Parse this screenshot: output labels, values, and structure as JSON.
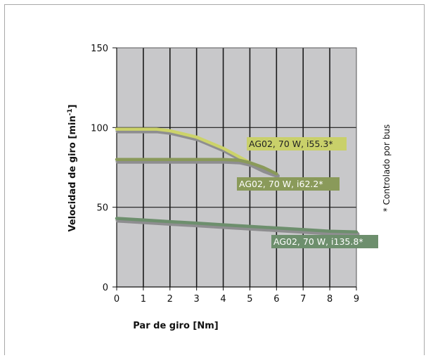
{
  "chart_data": {
    "type": "line",
    "xlabel": "Par de giro [Nm]",
    "ylabel_main": "Velocidad de giro [min",
    "ylabel_sup": "-1",
    "ylabel_close": "]",
    "note": "* Controlado por bus",
    "xlim": [
      0,
      9
    ],
    "ylim": [
      0,
      150
    ],
    "x_ticks": [
      "0",
      "1",
      "2",
      "3",
      "4",
      "5",
      "6",
      "7",
      "8",
      "9"
    ],
    "y_ticks": [
      "0",
      "50",
      "100",
      "150"
    ],
    "grid": true,
    "colors": {
      "plot_bg": "#c8c8ca",
      "grid": "#1a1a1a",
      "frame": "#a8a8a8"
    },
    "series": [
      {
        "name": "AG02, 70 W, i55.3*",
        "color": "#ccd36a",
        "label_bg": "#c9d06a",
        "points": [
          [
            0,
            99
          ],
          [
            1,
            99
          ],
          [
            1.5,
            99
          ],
          [
            2,
            98
          ],
          [
            3,
            94
          ],
          [
            4,
            87
          ],
          [
            5,
            78
          ],
          [
            5.5,
            74
          ],
          [
            6,
            71
          ]
        ]
      },
      {
        "name": "AG02, 70 W, i62.2*",
        "color": "#8a9a5a",
        "label_bg": "#8a9a5a",
        "points": [
          [
            0,
            80
          ],
          [
            1,
            80
          ],
          [
            2,
            80
          ],
          [
            3,
            80
          ],
          [
            4,
            80
          ],
          [
            4.6,
            79.5
          ],
          [
            5,
            78
          ],
          [
            5.5,
            75
          ],
          [
            6,
            71
          ]
        ]
      },
      {
        "name": "AG02, 70 W, i135.8*",
        "color": "#6d8f6d",
        "label_bg": "#6d8f6d",
        "points": [
          [
            0,
            43
          ],
          [
            1,
            42
          ],
          [
            2,
            41
          ],
          [
            3,
            40
          ],
          [
            4,
            39
          ],
          [
            5,
            38
          ],
          [
            6,
            37
          ],
          [
            7,
            36
          ],
          [
            8,
            35
          ],
          [
            9,
            34.5
          ]
        ]
      }
    ]
  }
}
